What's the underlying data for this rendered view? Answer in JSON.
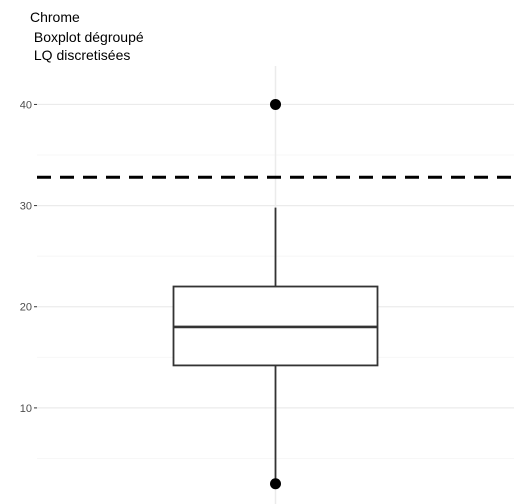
{
  "chart_data": {
    "type": "boxplot",
    "title_lines": [
      "Chrome",
      " Boxplot dégroupé",
      " LQ discretisées"
    ],
    "xlabel": "",
    "ylabel": "",
    "ylim": [
      0.5,
      43.8
    ],
    "y_ticks": [
      10,
      20,
      30,
      40
    ],
    "grid": true,
    "box": {
      "q1": 14.2,
      "median": 18,
      "q3": 22,
      "whisker_low": 2.5,
      "whisker_high": 29.8,
      "outliers": [
        40,
        2.5
      ]
    },
    "reference_line": {
      "y": 32.8,
      "style": "dashed"
    },
    "colors": {
      "panel": "#ffffff",
      "grid_major": "#ebebeb",
      "grid_minor": "#f5f5f5",
      "box_stroke": "#333333",
      "points": "#000000",
      "reference": "#000000"
    }
  }
}
